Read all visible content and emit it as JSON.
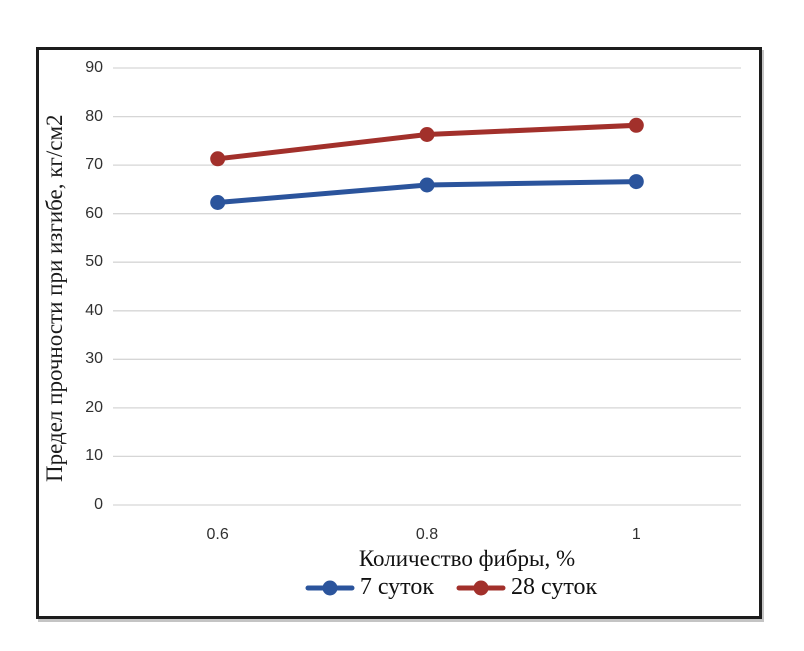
{
  "chart_data": {
    "type": "line",
    "title": "",
    "categories": [
      "0.6",
      "0.8",
      "1"
    ],
    "series": [
      {
        "name": "7 суток",
        "values": [
          62.3,
          65.9,
          66.6
        ],
        "color": "#2B549C"
      },
      {
        "name": "28 суток",
        "values": [
          71.3,
          76.3,
          78.2
        ],
        "color": "#A2302B"
      }
    ],
    "xlabel": "Количество фибры, %",
    "ylabel": "Предел прочности при изгибе, кг/см2",
    "ylim": [
      0,
      90
    ],
    "yticks": [
      0,
      10,
      20,
      30,
      40,
      50,
      60,
      70,
      80,
      90
    ],
    "grid": "horizontal-only",
    "legend_position": "bottom-center",
    "styles": {
      "gridline_color": "#D6D6D6",
      "tick_label_color": "#303030",
      "axis_title_color": "#1A1A1A",
      "frame_border_color": "#1C1C1C",
      "background": "#FFFFFF"
    }
  }
}
